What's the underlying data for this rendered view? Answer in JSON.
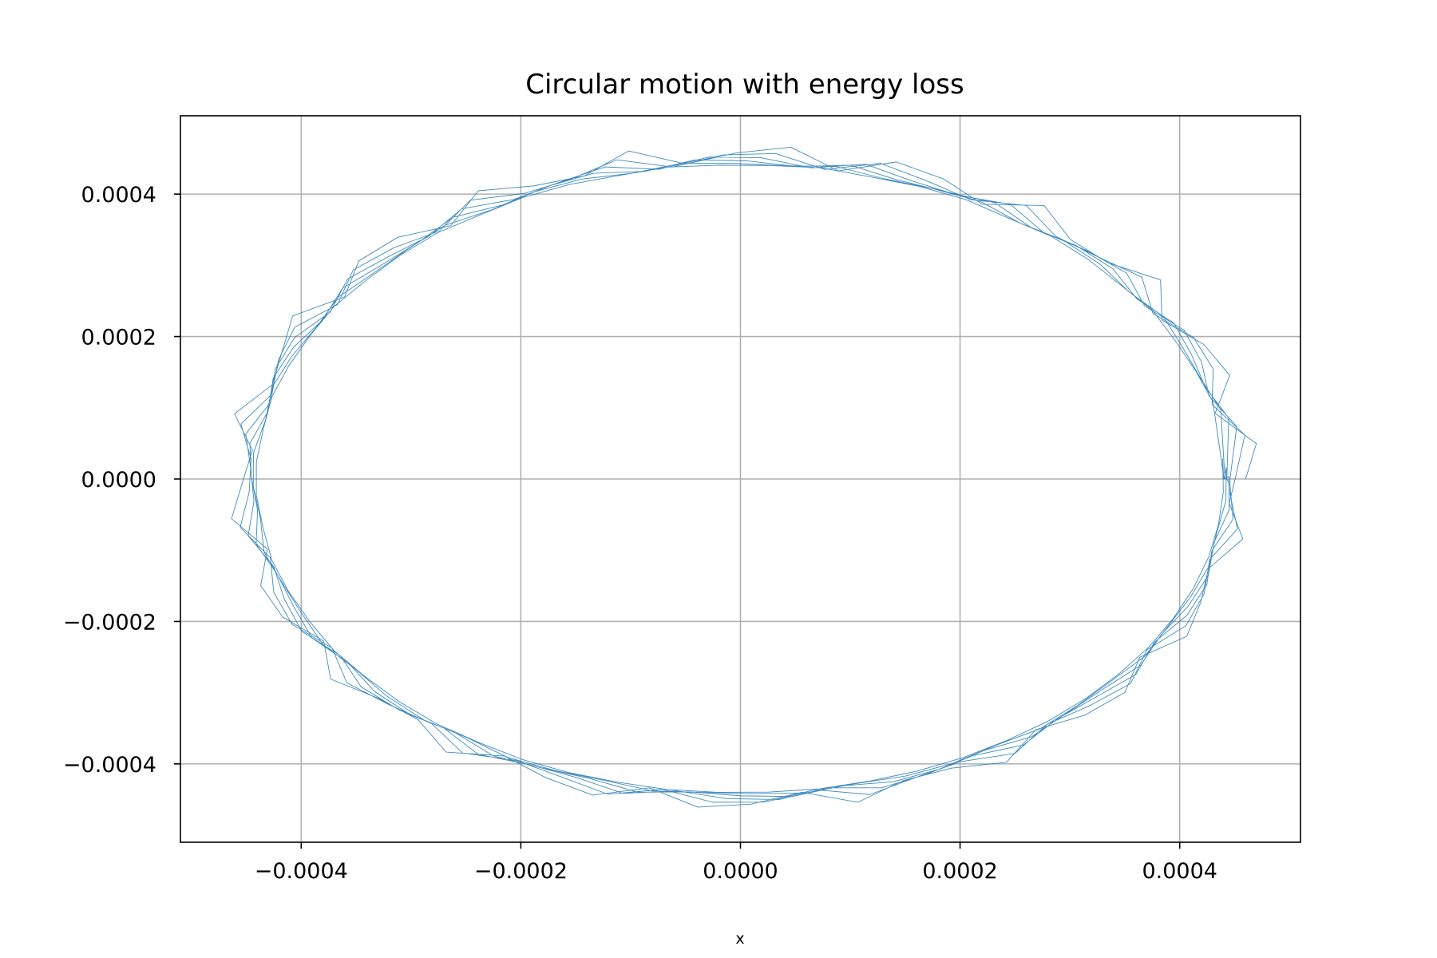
{
  "chart_data": {
    "type": "line",
    "title": "Circular motion with energy loss",
    "xlabel": "x",
    "ylabel": "",
    "xlim": [
      -0.00051,
      0.00051
    ],
    "ylim": [
      -0.00051,
      0.00051
    ],
    "grid": true,
    "x_ticks": [
      -0.0004,
      -0.0002,
      0.0,
      0.0002,
      0.0004
    ],
    "x_tick_labels": [
      "−0.0004",
      "−0.0002",
      "0.0000",
      "0.0002",
      "0.0004"
    ],
    "y_ticks": [
      -0.0004,
      -0.0002,
      0.0,
      0.0002,
      0.0004
    ],
    "y_tick_labels": [
      "−0.0004",
      "−0.0002",
      "0.0000",
      "0.0002",
      "0.0004"
    ],
    "series": [
      {
        "color": "#1f77b4",
        "description_values": "damped circular trajectory spiralling from radius ~0.00046 to ~0.00044",
        "r_start": 0.00046,
        "r_end": 0.00044,
        "turns": 6,
        "jitter": 1.8e-05
      }
    ]
  }
}
